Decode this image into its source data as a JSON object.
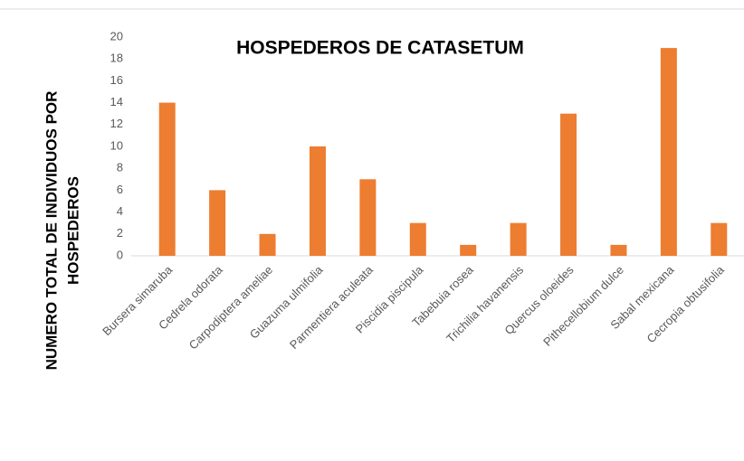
{
  "chart_data": {
    "type": "bar",
    "title": "HOSPEDEROS DE CATASETUM",
    "y_label": [
      "NUMERO TOTAL DE INDIVIDUOS POR",
      "HOSPEDEROS"
    ],
    "categories": [
      "Bursera simaruba",
      "Cedrela odorata",
      "Carpodiptera ameliae",
      "Guazuma ulmifolia",
      "Parmentiera aculeata",
      "Piscidia piscipula",
      "Tabebuia rosea",
      "Trichilia havanensis",
      "Quercus oloeides",
      "Pithecellobium dulce",
      "Sabal mexicana",
      "Cecropia obtusifolia"
    ],
    "values": [
      14,
      6,
      2,
      10,
      7,
      3,
      1,
      3,
      13,
      1,
      19,
      3
    ],
    "color": "#ed7d31",
    "ylim": [
      0,
      20
    ],
    "yticks": [
      0,
      2,
      4,
      6,
      8,
      10,
      12,
      14,
      16,
      18,
      20
    ],
    "grid": false
  }
}
